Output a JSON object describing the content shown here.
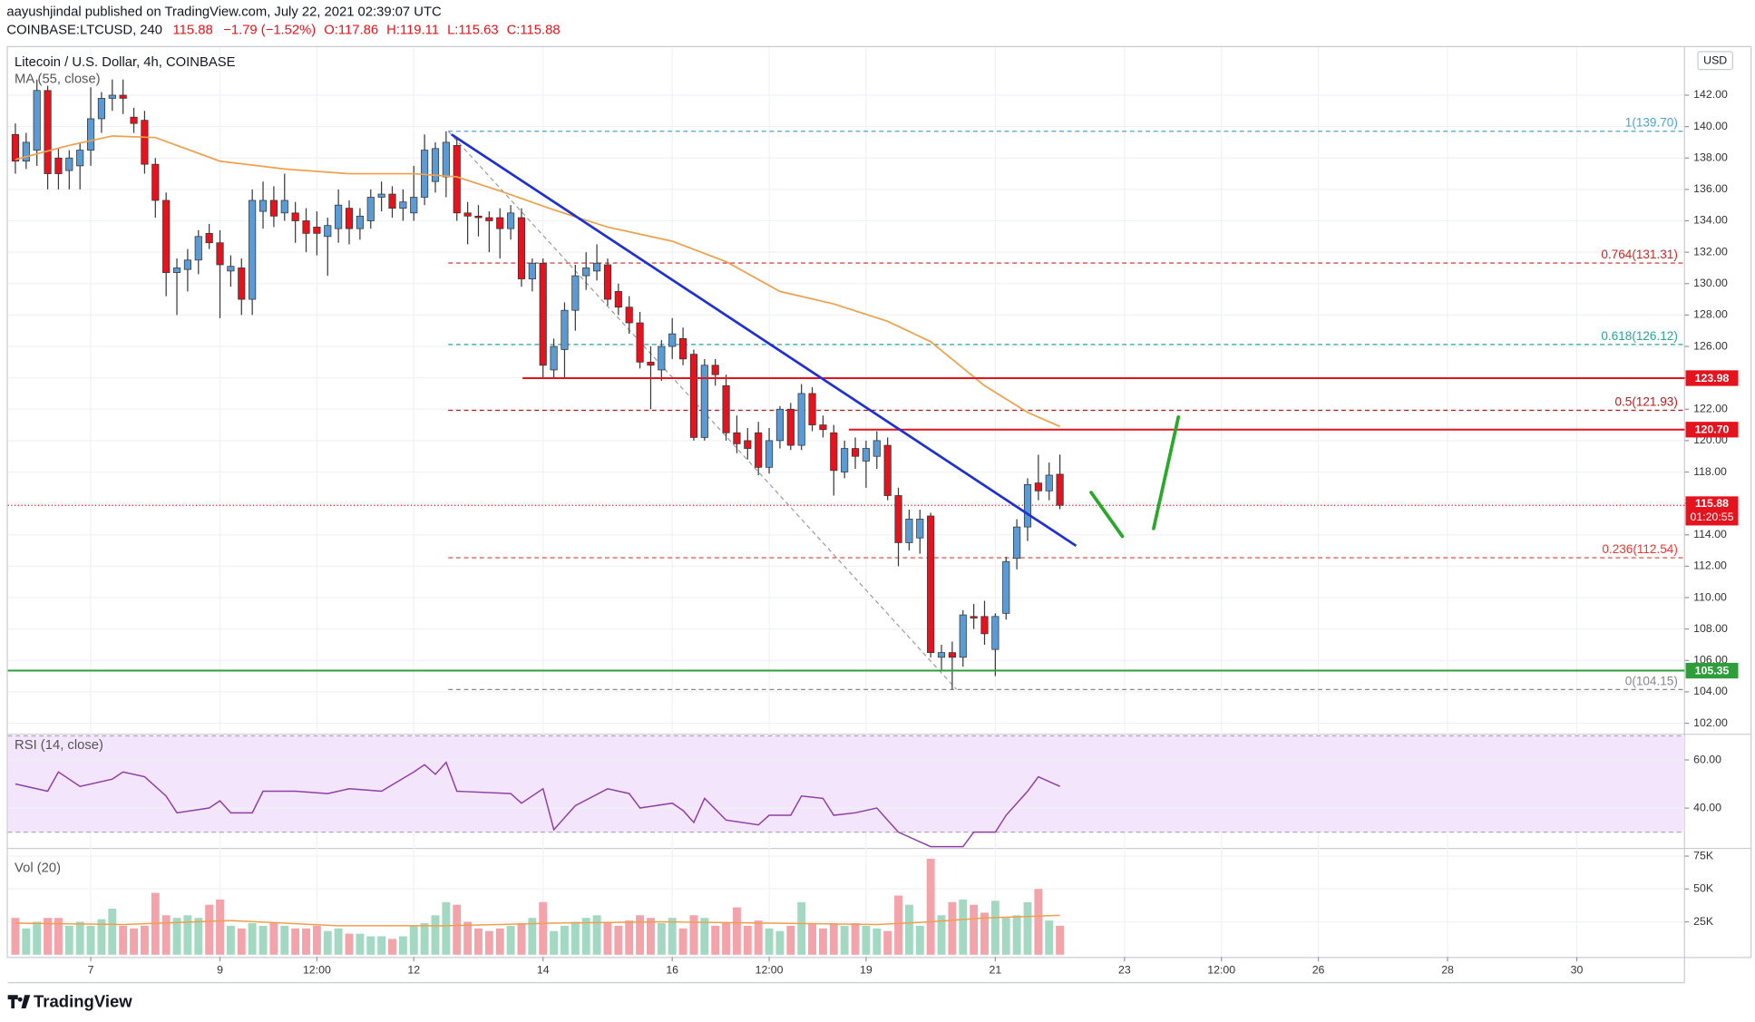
{
  "header": {
    "publisher": "aayushjindal published on TradingView.com, July 22, 2021 02:39:07 UTC",
    "symbol": "COINBASE:LTCUSD, 240",
    "last": "115.88",
    "change": "−1.79 (−1.52%)",
    "open": "O:117.86",
    "high": "H:119.11",
    "low": "L:115.63",
    "close": "C:115.88"
  },
  "footer": {
    "logo": "TradingView"
  },
  "chart_data": [
    {
      "type": "candlestick",
      "title": "Litecoin / U.S. Dollar, 4h, COINBASE",
      "currency": "USD",
      "up_color": "#5b9bd5",
      "down_color": "#e5131d",
      "grid": true,
      "candles": [
        [
          139.5,
          140.2,
          137.0,
          137.8
        ],
        [
          137.8,
          139.6,
          137.3,
          139.0
        ],
        [
          138.5,
          143.0,
          137.5,
          142.3
        ],
        [
          142.3,
          142.6,
          136.0,
          137.0
        ],
        [
          138.0,
          138.6,
          136.0,
          137.0
        ],
        [
          137.2,
          138.5,
          136.0,
          138.0
        ],
        [
          137.5,
          139.0,
          136.0,
          138.5
        ],
        [
          138.5,
          142.5,
          137.5,
          140.5
        ],
        [
          140.5,
          142.2,
          139.6,
          141.8
        ],
        [
          141.8,
          143.0,
          141.0,
          142.0
        ],
        [
          142.0,
          143.0,
          140.8,
          141.8
        ],
        [
          140.6,
          141.2,
          139.6,
          140.2
        ],
        [
          140.4,
          141.0,
          137.0,
          137.6
        ],
        [
          137.6,
          138.0,
          134.2,
          135.3
        ],
        [
          135.3,
          135.8,
          129.2,
          130.7
        ],
        [
          130.7,
          131.6,
          128.0,
          131.0
        ],
        [
          130.9,
          132.2,
          129.5,
          131.5
        ],
        [
          131.5,
          133.4,
          130.6,
          133.0
        ],
        [
          133.2,
          133.8,
          132.2,
          132.6
        ],
        [
          132.6,
          133.4,
          127.8,
          131.2
        ],
        [
          130.8,
          131.8,
          129.8,
          131.1
        ],
        [
          131.0,
          131.6,
          128.0,
          129.0
        ],
        [
          129.0,
          136.0,
          128.0,
          135.3
        ],
        [
          134.6,
          136.5,
          133.5,
          135.3
        ],
        [
          135.3,
          136.2,
          133.6,
          134.3
        ],
        [
          134.5,
          137.0,
          134.0,
          135.3
        ],
        [
          134.5,
          135.2,
          132.6,
          134.0
        ],
        [
          134.0,
          134.8,
          132.0,
          133.2
        ],
        [
          133.6,
          134.6,
          131.8,
          133.2
        ],
        [
          133.0,
          134.2,
          130.5,
          133.7
        ],
        [
          133.5,
          136.0,
          132.6,
          135.0
        ],
        [
          134.8,
          135.3,
          132.5,
          133.5
        ],
        [
          133.5,
          134.8,
          132.8,
          134.3
        ],
        [
          134.0,
          136.0,
          133.5,
          135.5
        ],
        [
          135.5,
          136.5,
          134.6,
          135.7
        ],
        [
          135.7,
          136.2,
          134.2,
          134.8
        ],
        [
          134.8,
          136.0,
          134.0,
          135.2
        ],
        [
          134.5,
          137.5,
          134.0,
          135.5
        ],
        [
          135.5,
          139.5,
          135.0,
          138.5
        ],
        [
          136.5,
          139.0,
          135.8,
          138.6
        ],
        [
          136.8,
          139.7,
          135.5,
          139.0
        ],
        [
          138.8,
          139.2,
          134.0,
          134.5
        ],
        [
          134.5,
          135.2,
          132.5,
          134.3
        ],
        [
          134.3,
          135.0,
          133.0,
          134.2
        ],
        [
          134.2,
          134.6,
          132.0,
          134.0
        ],
        [
          134.2,
          134.8,
          131.6,
          133.5
        ],
        [
          133.5,
          135.0,
          132.8,
          134.5
        ],
        [
          134.2,
          134.8,
          129.8,
          130.3
        ],
        [
          130.3,
          131.6,
          129.5,
          131.3
        ],
        [
          131.3,
          131.6,
          124.0,
          124.8
        ],
        [
          124.5,
          126.5,
          124.0,
          126.0
        ],
        [
          125.8,
          128.8,
          124.0,
          128.3
        ],
        [
          128.3,
          131.2,
          127.0,
          130.5
        ],
        [
          130.5,
          132.0,
          129.6,
          131.0
        ],
        [
          130.8,
          132.5,
          130.2,
          131.3
        ],
        [
          131.2,
          131.6,
          128.6,
          129.0
        ],
        [
          129.5,
          130.0,
          128.0,
          128.5
        ],
        [
          128.5,
          129.2,
          126.8,
          127.5
        ],
        [
          127.5,
          128.2,
          124.6,
          125.0
        ],
        [
          125.0,
          126.0,
          122.0,
          124.8
        ],
        [
          124.5,
          126.4,
          123.8,
          126.0
        ],
        [
          126.0,
          127.8,
          125.2,
          126.8
        ],
        [
          126.5,
          127.2,
          124.8,
          125.2
        ],
        [
          125.5,
          125.8,
          120.0,
          120.2
        ],
        [
          120.2,
          125.2,
          120.0,
          124.8
        ],
        [
          124.8,
          125.2,
          123.5,
          124.2
        ],
        [
          123.5,
          124.2,
          120.0,
          120.5
        ],
        [
          120.5,
          121.6,
          119.2,
          119.8
        ],
        [
          120.0,
          120.8,
          118.8,
          119.5
        ],
        [
          120.5,
          121.2,
          117.8,
          118.3
        ],
        [
          118.3,
          120.8,
          117.9,
          120.0
        ],
        [
          120.0,
          122.2,
          119.5,
          122.0
        ],
        [
          122.0,
          122.4,
          119.4,
          119.7
        ],
        [
          119.7,
          123.6,
          119.4,
          123.0
        ],
        [
          123.0,
          123.4,
          120.6,
          121.0
        ],
        [
          121.0,
          121.6,
          120.2,
          120.7
        ],
        [
          120.5,
          121.0,
          116.5,
          118.1
        ],
        [
          118.0,
          120.0,
          117.6,
          119.5
        ],
        [
          119.5,
          120.2,
          118.2,
          119.0
        ],
        [
          118.7,
          120.0,
          117.0,
          119.5
        ],
        [
          119.0,
          120.6,
          118.2,
          120.0
        ],
        [
          119.7,
          120.2,
          116.2,
          116.5
        ],
        [
          116.5,
          117.0,
          112.0,
          113.5
        ],
        [
          113.5,
          115.6,
          113.0,
          115.0
        ],
        [
          113.8,
          115.6,
          112.8,
          115.0
        ],
        [
          115.2,
          115.4,
          106.2,
          106.5
        ],
        [
          106.2,
          107.0,
          105.4,
          106.5
        ],
        [
          106.5,
          107.2,
          104.15,
          106.2
        ],
        [
          106.2,
          109.2,
          105.6,
          108.9
        ],
        [
          108.8,
          109.6,
          108.0,
          108.7
        ],
        [
          108.8,
          109.8,
          107.0,
          107.7
        ],
        [
          106.7,
          109.0,
          105.0,
          108.8
        ],
        [
          109.0,
          112.6,
          108.6,
          112.3
        ],
        [
          112.5,
          115.0,
          111.8,
          114.5
        ],
        [
          114.5,
          117.6,
          113.6,
          117.2
        ],
        [
          117.3,
          119.1,
          116.2,
          116.8
        ],
        [
          116.8,
          118.6,
          116.2,
          117.8
        ],
        [
          117.86,
          119.11,
          115.63,
          115.88
        ]
      ],
      "series": [
        {
          "name": "MA (55, close)",
          "color": "#f0a04b",
          "x": [
            0,
            5,
            9,
            13,
            19,
            25,
            31,
            37,
            41,
            45,
            50,
            55,
            61,
            66,
            71,
            76,
            81,
            85,
            90,
            94,
            97
          ],
          "values": [
            137.9,
            138.8,
            139.4,
            139.3,
            137.8,
            137.3,
            137.0,
            137.0,
            136.8,
            135.9,
            134.7,
            133.6,
            132.7,
            131.4,
            129.5,
            128.7,
            127.6,
            126.3,
            123.5,
            121.8,
            120.9
          ]
        }
      ],
      "xlim": [
        -0.7,
        155
      ],
      "xticks": [
        {
          "value": 7,
          "label": "7"
        },
        {
          "value": 19,
          "label": "9"
        },
        {
          "value": 28,
          "label": "12:00"
        },
        {
          "value": 37,
          "label": "12"
        },
        {
          "value": 49,
          "label": "14"
        },
        {
          "value": 61,
          "label": "16"
        },
        {
          "value": 70,
          "label": "12:00"
        },
        {
          "value": 79,
          "label": "19"
        },
        {
          "value": 91,
          "label": "21"
        },
        {
          "value": 103,
          "label": "23"
        },
        {
          "value": 112,
          "label": "12:00"
        },
        {
          "value": 121,
          "label": "26"
        },
        {
          "value": 133,
          "label": "28"
        },
        {
          "value": 145,
          "label": "30"
        }
      ],
      "ylim": [
        101.37,
        145.06
      ],
      "yticks": [
        {
          "value": 102,
          "label": "102.00"
        },
        {
          "value": 104,
          "label": "104.00"
        },
        {
          "value": 106,
          "label": "106.00"
        },
        {
          "value": 108,
          "label": "108.00"
        },
        {
          "value": 110,
          "label": "110.00"
        },
        {
          "value": 112,
          "label": "112.00"
        },
        {
          "value": 114,
          "label": "114.00"
        },
        {
          "value": 116,
          "label": "116.00"
        },
        {
          "value": 118,
          "label": "118.00"
        },
        {
          "value": 120,
          "label": "120.00"
        },
        {
          "value": 122,
          "label": "122.00"
        },
        {
          "value": 124,
          "label": "124.00"
        },
        {
          "value": 126,
          "label": "126.00"
        },
        {
          "value": 128,
          "label": "128.00"
        },
        {
          "value": 130,
          "label": "130.00"
        },
        {
          "value": 132,
          "label": "132.00"
        },
        {
          "value": 134,
          "label": "134.00"
        },
        {
          "value": 136,
          "label": "136.00"
        },
        {
          "value": 138,
          "label": "138.00"
        },
        {
          "value": 140,
          "label": "140.00"
        },
        {
          "value": 142,
          "label": "142.00"
        }
      ],
      "fib": {
        "start": 40.2,
        "levels": [
          {
            "value": 139.7,
            "label": "1(139.70)",
            "color": "#4aa3d4"
          },
          {
            "value": 131.31,
            "label": "0.764(131.31)",
            "color": "#c62828"
          },
          {
            "value": 126.12,
            "label": "0.618(126.12)",
            "color": "#26a69a"
          },
          {
            "value": 121.93,
            "label": "0.5(121.93)",
            "color": "#b71c1c"
          },
          {
            "value": 112.54,
            "label": "0.236(112.54)",
            "color": "#e53935"
          },
          {
            "value": 104.15,
            "label": "0(104.15)",
            "color": "#888888"
          }
        ]
      },
      "levels": [
        {
          "value": 123.98,
          "label": "123.98",
          "color": "#e5131d",
          "start": 47.1
        },
        {
          "value": 120.7,
          "label": "120.70",
          "color": "#e5131d",
          "start": 77.4
        },
        {
          "value": 105.35,
          "label": "105.35",
          "color": "#2e9e3a",
          "start": -0.7
        }
      ],
      "last_price": {
        "value": 115.88,
        "label": "115.88",
        "countdown": "01:20:55",
        "color": "#e5131d"
      },
      "drawings": [
        {
          "kind": "trend",
          "color": "#1f2fd6",
          "points": [
            [
              40.5,
              139.5
            ],
            [
              98.5,
              113.3
            ]
          ]
        },
        {
          "kind": "diagonal",
          "color": "#9e9e9e",
          "points": [
            [
              40.2,
              139.7
            ],
            [
              87.4,
              104.15
            ]
          ]
        },
        {
          "kind": "arrow",
          "color": "#2aa82a",
          "points": [
            [
              99.9,
              116.7
            ],
            [
              102.8,
              113.9
            ]
          ]
        },
        {
          "kind": "arrow",
          "color": "#2aa82a",
          "points": [
            [
              105.7,
              114.4
            ],
            [
              108.0,
              121.5
            ]
          ]
        }
      ]
    },
    {
      "type": "line",
      "title": "RSI (14, close)",
      "color": "#8e3fa8",
      "band": [
        30,
        70
      ],
      "band_color": "#f3e5fb",
      "xlim": [
        -0.7,
        155
      ],
      "x": [
        0,
        3,
        4,
        6,
        9,
        10,
        12,
        14,
        15,
        18,
        19,
        20,
        22,
        23,
        26,
        29,
        31,
        34,
        37,
        38,
        39,
        40,
        41,
        46,
        47,
        49,
        50,
        52,
        55,
        57,
        58,
        61,
        62,
        63,
        64,
        66,
        69,
        70,
        72,
        73,
        75,
        76,
        78,
        80,
        81,
        82,
        85,
        88,
        89,
        91,
        92,
        94,
        95,
        96,
        97
      ],
      "values": [
        50,
        47,
        55,
        49,
        52,
        55,
        53,
        45,
        38,
        40,
        43,
        38,
        38,
        47,
        47,
        46,
        48,
        47,
        55,
        58,
        54,
        59,
        47,
        46,
        42,
        48,
        31,
        41,
        48,
        46,
        40,
        42,
        39,
        34,
        44,
        35,
        33,
        37,
        37,
        45,
        44,
        37,
        38,
        40,
        35,
        30,
        24,
        24,
        30,
        30,
        37,
        47,
        53,
        51,
        49
      ],
      "ylim": [
        23.7,
        70.2
      ],
      "yticks": [
        {
          "value": 40,
          "label": "40.00"
        },
        {
          "value": 60,
          "label": "60.00"
        }
      ]
    },
    {
      "type": "bar",
      "title": "Vol (20)",
      "up_color": "#a3d8c2",
      "down_color": "#f3a3aa",
      "xlim": [
        -0.7,
        155
      ],
      "values": [
        28000,
        20000,
        25000,
        28000,
        28000,
        22000,
        25000,
        22000,
        27000,
        35000,
        22000,
        20000,
        22000,
        47000,
        30000,
        28000,
        30000,
        28000,
        38000,
        42000,
        22000,
        20000,
        24000,
        22000,
        24000,
        22000,
        20000,
        20000,
        22000,
        18000,
        20000,
        16000,
        16000,
        14000,
        14000,
        12000,
        14000,
        22000,
        24000,
        30000,
        40000,
        38000,
        25000,
        20000,
        18000,
        20000,
        22000,
        24000,
        28000,
        40000,
        18000,
        22000,
        25000,
        28000,
        30000,
        24000,
        22000,
        26000,
        30000,
        28000,
        24000,
        28000,
        20000,
        30000,
        28000,
        22000,
        24000,
        36000,
        22000,
        26000,
        20000,
        18000,
        22000,
        40000,
        24000,
        20000,
        24000,
        22000,
        24000,
        22000,
        20000,
        18000,
        45000,
        38000,
        22000,
        73000,
        30000,
        40000,
        42000,
        38000,
        32000,
        41000,
        28000,
        30000,
        40000,
        50000,
        26000,
        22000
      ],
      "ma": {
        "color": "#f0a04b",
        "x": [
          0,
          10,
          20,
          30,
          40,
          50,
          60,
          70,
          80,
          85,
          90,
          97
        ],
        "values": [
          24000,
          23000,
          26000,
          22000,
          22000,
          24000,
          25000,
          24000,
          23000,
          25000,
          28000,
          30000
        ]
      },
      "ylim": [
        0,
        80000
      ],
      "yticks": [
        {
          "value": 25000,
          "label": "25K"
        },
        {
          "value": 50000,
          "label": "50K"
        },
        {
          "value": 75000,
          "label": "75K"
        }
      ]
    }
  ]
}
